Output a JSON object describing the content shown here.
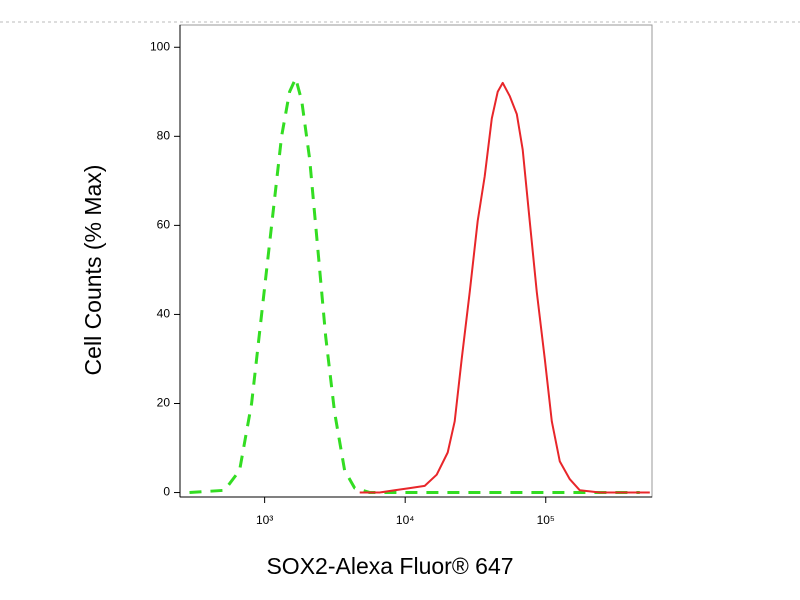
{
  "chart_data": {
    "type": "line",
    "xscale": "log",
    "xlabel": "SOX2-Alexa Fluor® 647",
    "ylabel": "Cell Counts (% Max)",
    "xlim": [
      250,
      570000
    ],
    "ylim": [
      -1,
      105
    ],
    "xticks": [
      {
        "value": 1000,
        "label": "10³"
      },
      {
        "value": 10000,
        "label": "10⁴"
      },
      {
        "value": 100000,
        "label": "10⁵"
      }
    ],
    "yticks": [
      0,
      20,
      40,
      60,
      80,
      100
    ],
    "series": [
      {
        "color": "#33dd22",
        "line_style": "dashed",
        "x": [
          292,
          519,
          664,
          808,
          952,
          1121,
          1321,
          1506,
          1663,
          1834,
          2090,
          2385,
          2718,
          3148,
          3708,
          4372,
          5585,
          20750,
          467000
        ],
        "values": [
          0,
          0.5,
          5,
          20,
          40,
          60,
          80,
          90,
          93,
          88,
          75,
          55,
          35,
          18,
          5,
          1,
          0,
          0,
          0
        ]
      },
      {
        "color": "#e8262a",
        "line_style": "solid",
        "x": [
          4746,
          6587,
          8418,
          10760,
          13760,
          16760,
          20050,
          22490,
          25230,
          28770,
          32810,
          36810,
          41300,
          45520,
          49410,
          55450,
          62230,
          68580,
          76930,
          86330,
          98400,
          110400,
          125900,
          148300,
          174600,
          242300,
          549600
        ],
        "values": [
          0,
          0,
          0.5,
          1,
          1.5,
          4,
          9,
          16,
          30,
          45,
          61,
          71,
          84,
          90,
          92,
          89,
          85,
          77,
          61,
          45,
          30,
          16,
          7,
          3,
          0.5,
          0,
          0
        ]
      }
    ]
  }
}
